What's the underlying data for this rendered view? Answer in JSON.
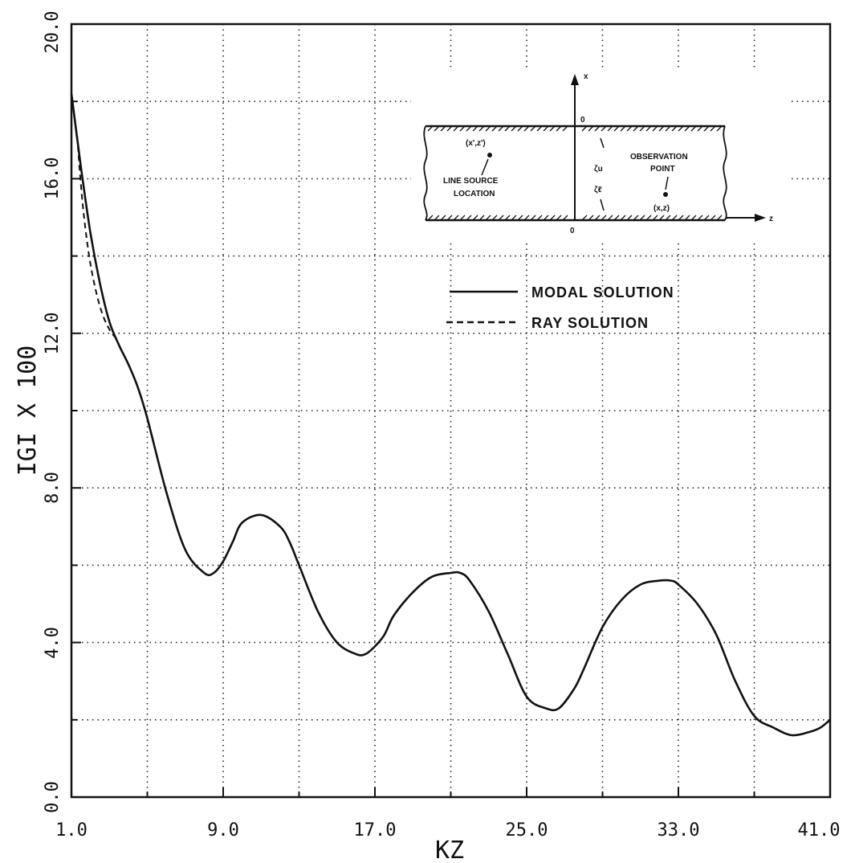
{
  "chart_data": {
    "type": "line",
    "xlabel": "KZ",
    "ylabel": "IGI X 100",
    "xlim": [
      1.0,
      41.0
    ],
    "ylim": [
      0.0,
      20.0
    ],
    "x_ticks": [
      "1.0",
      "9.0",
      "17.0",
      "25.0",
      "33.0",
      "41.0"
    ],
    "y_ticks": [
      "0.0",
      "4.0",
      "8.0",
      "12.0",
      "16.0",
      "20.0"
    ],
    "grid": true,
    "legend_position": "right, below inset",
    "series": [
      {
        "name": "MODAL SOLUTION",
        "style": "solid",
        "color": "#111111",
        "x": [
          1.0,
          1.5,
          2.0,
          2.5,
          3.0,
          3.5,
          4.0,
          4.5,
          5.0,
          6.0,
          7.0,
          8.0,
          8.5,
          9.0,
          9.5,
          10.0,
          11.0,
          12.0,
          12.5,
          13.0,
          14.0,
          15.0,
          16.0,
          16.5,
          17.0,
          17.5,
          18.0,
          19.0,
          20.0,
          21.0,
          21.5,
          22.0,
          23.0,
          24.0,
          25.0,
          26.0,
          26.7,
          27.5,
          28.0,
          29.0,
          30.0,
          31.0,
          32.0,
          32.6,
          33.0,
          34.0,
          35.0,
          36.0,
          37.0,
          38.0,
          39.0,
          40.0,
          40.5,
          41.0
        ],
        "y": [
          18.2,
          16.3,
          14.6,
          13.3,
          12.3,
          11.7,
          11.2,
          10.6,
          9.8,
          7.9,
          6.4,
          5.8,
          5.8,
          6.1,
          6.6,
          7.1,
          7.3,
          7.0,
          6.6,
          6.0,
          4.8,
          4.0,
          3.7,
          3.7,
          3.9,
          4.2,
          4.7,
          5.3,
          5.7,
          5.8,
          5.8,
          5.6,
          4.8,
          3.7,
          2.6,
          2.3,
          2.3,
          2.8,
          3.3,
          4.4,
          5.1,
          5.5,
          5.6,
          5.6,
          5.5,
          5.0,
          4.2,
          3.0,
          2.1,
          1.8,
          1.6,
          1.7,
          1.8,
          2.0
        ]
      },
      {
        "name": "RAY SOLUTION",
        "style": "dashed",
        "color": "#111111",
        "x": [
          1.3,
          1.6,
          2.0,
          2.5,
          3.0,
          3.5
        ],
        "y": [
          17.1,
          15.3,
          13.8,
          12.7,
          12.1,
          11.8
        ]
      }
    ]
  },
  "inset": {
    "labels": {
      "source_coord": "(x',z')",
      "line_source_1": "LINE SOURCE",
      "line_source_2": "LOCATION",
      "observation_1": "OBSERVATION",
      "observation_2": "POINT",
      "observation_coord": "(x,z)",
      "top_origin": "0",
      "bottom_origin": "0",
      "x_axis": "x",
      "z_axis": "z",
      "zeta_upper": "ζu",
      "zeta_lower": "ζℓ"
    }
  }
}
